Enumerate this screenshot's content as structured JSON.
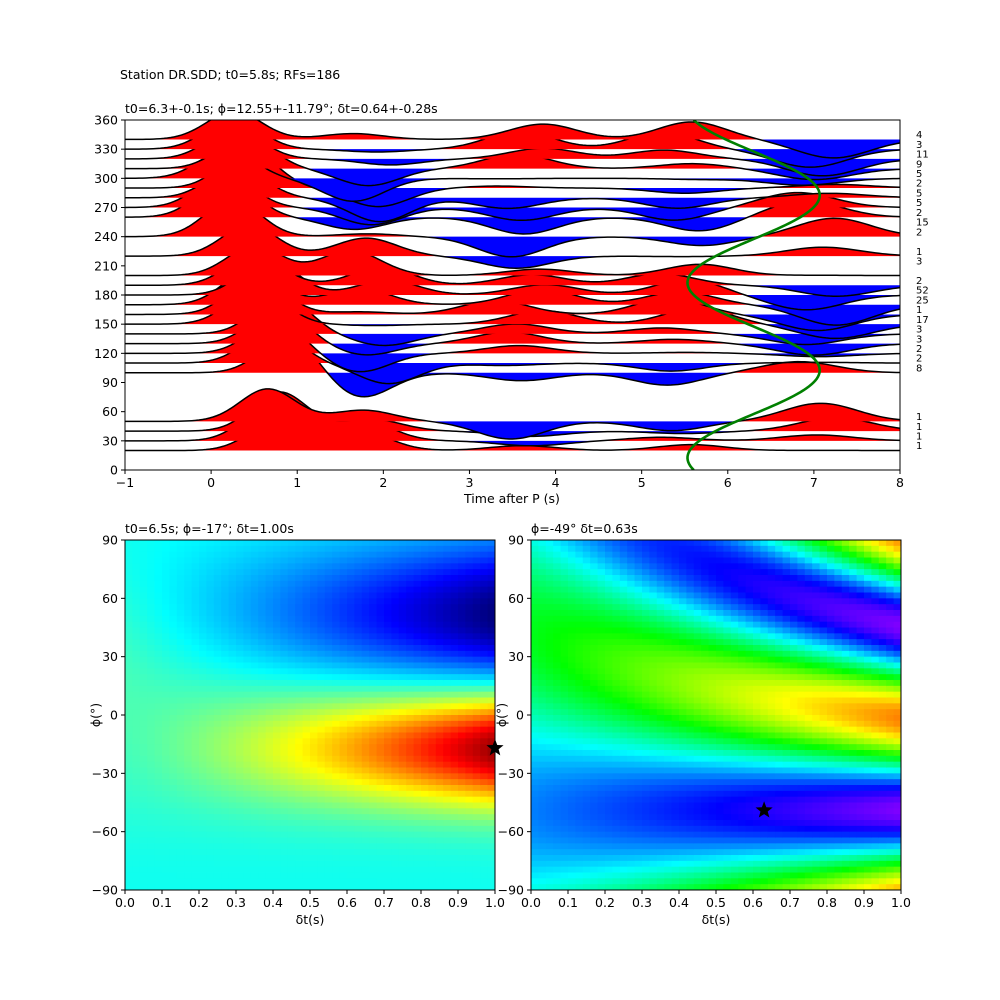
{
  "suptitle": "Station DR.SDD; t0=5.8s; RFs=186",
  "chart_data": [
    {
      "type": "line",
      "title": "t0=6.3+-0.1s; ϕ=12.55+-11.79°; δt=0.64+-0.28s",
      "xlabel": "Time after P (s)",
      "ylabel": "",
      "xlim": [
        -1,
        8
      ],
      "ylim": [
        0,
        360
      ],
      "xticks": [
        "−1",
        "0",
        "1",
        "2",
        "3",
        "4",
        "5",
        "6",
        "7",
        "8"
      ],
      "yticks": [
        "0",
        "30",
        "60",
        "90",
        "120",
        "150",
        "180",
        "210",
        "240",
        "270",
        "300",
        "330",
        "360"
      ],
      "grid": false,
      "fill_positive_color": "#ff0000",
      "fill_negative_color": "#0000ff",
      "curve_color": "#008000",
      "trace_backazimuths": [
        20,
        30,
        40,
        50,
        100,
        110,
        120,
        130,
        140,
        150,
        160,
        170,
        180,
        190,
        200,
        220,
        240,
        260,
        270,
        280,
        290,
        300,
        310,
        320,
        330,
        340
      ],
      "count_labels": [
        {
          "baz": 345,
          "n": "4"
        },
        {
          "baz": 335,
          "n": "3"
        },
        {
          "baz": 325,
          "n": "11"
        },
        {
          "baz": 315,
          "n": "9"
        },
        {
          "baz": 305,
          "n": "5"
        },
        {
          "baz": 295,
          "n": "2"
        },
        {
          "baz": 285,
          "n": "5"
        },
        {
          "baz": 275,
          "n": "5"
        },
        {
          "baz": 265,
          "n": "2"
        },
        {
          "baz": 255,
          "n": "15"
        },
        {
          "baz": 245,
          "n": "2"
        },
        {
          "baz": 225,
          "n": "1"
        },
        {
          "baz": 215,
          "n": "3"
        },
        {
          "baz": 195,
          "n": "2"
        },
        {
          "baz": 185,
          "n": "52"
        },
        {
          "baz": 175,
          "n": "25"
        },
        {
          "baz": 165,
          "n": "1"
        },
        {
          "baz": 155,
          "n": "17"
        },
        {
          "baz": 145,
          "n": "3"
        },
        {
          "baz": 135,
          "n": "3"
        },
        {
          "baz": 125,
          "n": "2"
        },
        {
          "baz": 115,
          "n": "2"
        },
        {
          "baz": 105,
          "n": "8"
        },
        {
          "baz": 55,
          "n": "1"
        },
        {
          "baz": 45,
          "n": "1"
        },
        {
          "baz": 35,
          "n": "1"
        },
        {
          "baz": 25,
          "n": "1"
        }
      ]
    },
    {
      "type": "heatmap",
      "title": "t0=6.5s; ϕ=-17°; δt=1.00s",
      "xlabel": "δt(s)",
      "ylabel": "ϕ(°)",
      "xlim": [
        0,
        1
      ],
      "ylim": [
        -90,
        90
      ],
      "xticks": [
        "0.0",
        "0.1",
        "0.2",
        "0.3",
        "0.4",
        "0.5",
        "0.6",
        "0.7",
        "0.8",
        "0.9",
        "1.0"
      ],
      "yticks": [
        "−90",
        "−60",
        "−30",
        "0",
        "30",
        "60",
        "90"
      ],
      "colormap": "jet",
      "best": {
        "dt": 1.0,
        "phi": -17
      }
    },
    {
      "type": "heatmap",
      "title": "ϕ=-49° δt=0.63s",
      "xlabel": "δt(s)",
      "ylabel": "ϕ(°)",
      "xlim": [
        0,
        1
      ],
      "ylim": [
        -90,
        90
      ],
      "xticks": [
        "0.0",
        "0.1",
        "0.2",
        "0.3",
        "0.4",
        "0.5",
        "0.6",
        "0.7",
        "0.8",
        "0.9",
        "1.0"
      ],
      "yticks": [
        "−90",
        "−60",
        "−30",
        "0",
        "30",
        "60",
        "90"
      ],
      "colormap": "hsv",
      "best": {
        "dt": 0.63,
        "phi": -49
      }
    }
  ]
}
